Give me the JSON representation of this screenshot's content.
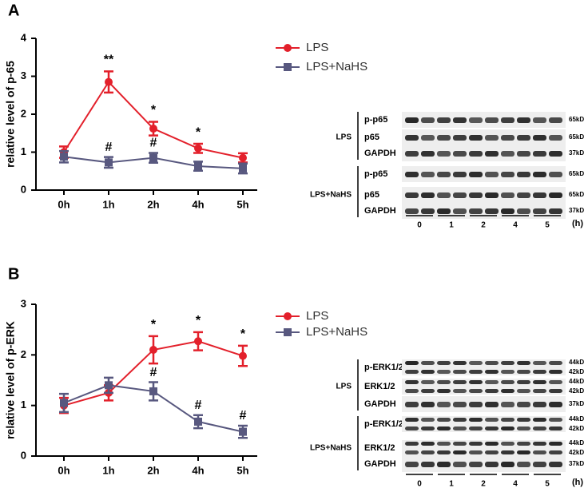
{
  "chart_data": [
    {
      "type": "line",
      "panel_label": "A",
      "y_label": "relative level of p-65",
      "categories": [
        "0h",
        "1h",
        "2h",
        "4h",
        "5h"
      ],
      "ylim": [
        0,
        4
      ],
      "yticks": [
        0,
        1,
        2,
        3,
        4
      ],
      "legend": "right",
      "series": [
        {
          "name": "LPS",
          "color": "#e3202b",
          "marker": "circle",
          "values": [
            1.0,
            2.85,
            1.62,
            1.1,
            0.85
          ],
          "errors": [
            0.15,
            0.28,
            0.18,
            0.12,
            0.12
          ],
          "significance": [
            null,
            "**",
            "*",
            "*",
            null
          ]
        },
        {
          "name": "LPS+NaHS",
          "color": "#58587f",
          "marker": "square",
          "values": [
            0.88,
            0.73,
            0.85,
            0.63,
            0.57
          ],
          "errors": [
            0.15,
            0.14,
            0.13,
            0.12,
            0.13
          ],
          "significance": [
            null,
            "#",
            "#",
            null,
            null
          ]
        }
      ]
    },
    {
      "type": "line",
      "panel_label": "B",
      "y_label": "relative level of p-ERK",
      "categories": [
        "0h",
        "1h",
        "2h",
        "4h",
        "5h"
      ],
      "ylim": [
        0,
        3
      ],
      "yticks": [
        0,
        1,
        2,
        3
      ],
      "legend": "right",
      "series": [
        {
          "name": "LPS",
          "color": "#e3202b",
          "marker": "circle",
          "values": [
            1.0,
            1.25,
            2.1,
            2.27,
            1.98
          ],
          "errors": [
            0.15,
            0.15,
            0.27,
            0.18,
            0.2
          ],
          "significance": [
            null,
            null,
            "*",
            "*",
            "*"
          ]
        },
        {
          "name": "LPS+NaHS",
          "color": "#58587f",
          "marker": "square",
          "values": [
            1.05,
            1.4,
            1.28,
            0.68,
            0.48
          ],
          "errors": [
            0.18,
            0.15,
            0.18,
            0.13,
            0.12
          ],
          "significance": [
            null,
            null,
            "#",
            "#",
            "#"
          ]
        }
      ]
    }
  ],
  "blots": [
    {
      "groups": [
        {
          "name": "LPS",
          "rows": [
            {
              "label": "p-p65",
              "sizes": [
                "65kD"
              ]
            },
            {
              "label": "p65",
              "sizes": [
                "65kD"
              ]
            },
            {
              "label": "GAPDH",
              "sizes": [
                "37kD"
              ]
            }
          ]
        },
        {
          "name": "LPS+NaHS",
          "rows": [
            {
              "label": "p-p65",
              "sizes": [
                "65kD"
              ]
            },
            {
              "label": "p65",
              "sizes": [
                "65kD"
              ]
            },
            {
              "label": "GAPDH",
              "sizes": [
                "37kD"
              ]
            }
          ]
        }
      ],
      "lanes": [
        "0",
        "1",
        "2",
        "4",
        "5"
      ],
      "unit": "(h)"
    },
    {
      "groups": [
        {
          "name": "LPS",
          "rows": [
            {
              "label": "p-ERK1/2",
              "sizes": [
                "44kD",
                "42kD"
              ]
            },
            {
              "label": "ERK1/2",
              "sizes": [
                "44kD",
                "42kD"
              ]
            },
            {
              "label": "GAPDH",
              "sizes": [
                "37kD"
              ]
            }
          ]
        },
        {
          "name": "LPS+NaHS",
          "rows": [
            {
              "label": "p-ERK1/2",
              "sizes": [
                "44kD",
                "42kD"
              ]
            },
            {
              "label": "ERK1/2",
              "sizes": [
                "44kD",
                "42kD"
              ]
            },
            {
              "label": "GAPDH",
              "sizes": [
                "37kD"
              ]
            }
          ]
        }
      ],
      "lanes": [
        "0",
        "1",
        "2",
        "4",
        "5"
      ],
      "unit": "(h)"
    }
  ]
}
